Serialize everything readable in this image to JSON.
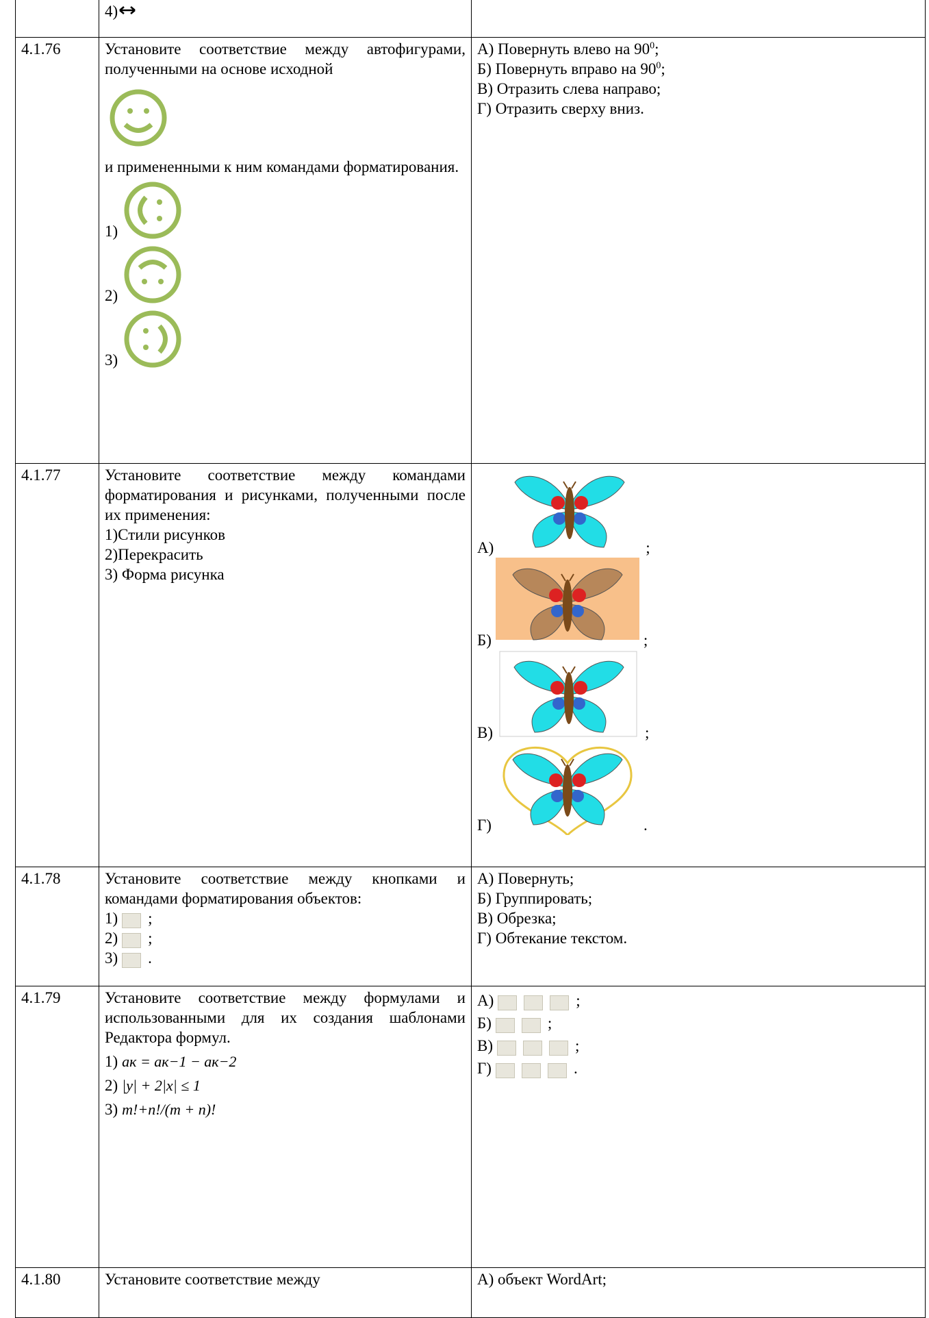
{
  "table": {
    "rows": [
      {
        "question": [
          "4)"
        ]
      },
      {
        "number": "4.1.76",
        "question": [
          "Установите соответствие между автофигурами, полученными на основе исходной",
          "и примененными к ним командами форматирования."
        ],
        "items": [
          {
            "label": "1)"
          },
          {
            "label": "2)"
          },
          {
            "label": "3)"
          }
        ],
        "answers": [
          {
            "text": "А) Повернуть влево на 90",
            "sup": "0",
            "tail": ";"
          },
          {
            "text": "Б) Повернуть вправо на 90",
            "sup": "0",
            "tail": ";"
          },
          {
            "text": "В) Отразить слева направо;"
          },
          {
            "text": "Г) Отразить сверху вниз."
          }
        ]
      },
      {
        "number": "4.1.77",
        "question": [
          "Установите соответствие между командами форматирования и рисунками, полученными после их применения:",
          "1)Стили рисунков",
          "2)Перекрасить",
          "3) Форма рисунка"
        ],
        "answers": [
          {
            "text": "А)",
            "tail": ";"
          },
          {
            "text": "Б)",
            "tail": ";"
          },
          {
            "text": "В)",
            "tail": ";"
          },
          {
            "text": "Г)",
            "tail": "."
          }
        ]
      },
      {
        "number": "4.1.78",
        "question": [
          "Установите соответствие между кнопками и командами форматирования объектов:"
        ],
        "items": [
          {
            "label": "1)",
            "tail": ";"
          },
          {
            "label": "2)",
            "tail": ";"
          },
          {
            "label": "3)",
            "tail": "."
          }
        ],
        "answers": [
          {
            "text": "А) Повернуть;"
          },
          {
            "text": "Б) Группировать;"
          },
          {
            "text": "В) Обрезка;"
          },
          {
            "text": "Г) Обтекание текстом."
          }
        ]
      },
      {
        "number": "4.1.79",
        "question": [
          "Установите соответствие между формулами и использованными для их создания шаблонами Редактора формул."
        ],
        "items": [
          {
            "label": "1)",
            "formula": "aк = aк−1 − aк−2"
          },
          {
            "label": "2)",
            "formula": "|y| + 2|x| ≤ 1"
          },
          {
            "label": "3)",
            "formula": "m!+n!/(m + n)!"
          }
        ],
        "answers": [
          {
            "text": "А)",
            "tail": ";"
          },
          {
            "text": "Б)",
            "tail": ";"
          },
          {
            "text": "В)",
            "tail": ";"
          },
          {
            "text": "Г)",
            "tail": "."
          }
        ]
      },
      {
        "number": "4.1.80",
        "question": [
          "Установите соответствие между"
        ],
        "answers": [
          {
            "text": "А) объект WordArt;"
          }
        ]
      }
    ]
  }
}
